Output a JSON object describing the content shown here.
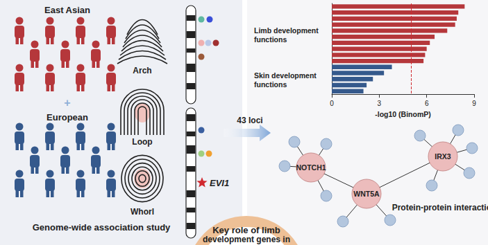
{
  "left_panel": {
    "groups": [
      "East Asian",
      "European"
    ],
    "plus": "+",
    "fingerprints": [
      "Arch",
      "Loop",
      "Whorl"
    ],
    "gene": "EVI1",
    "caption": "Genome-wide association study"
  },
  "arrow_label": "43 loci",
  "chart_data": {
    "type": "bar",
    "orientation": "horizontal",
    "categories": [
      null,
      null,
      null,
      null,
      null,
      null,
      null,
      null,
      null,
      null,
      null,
      null,
      null,
      null,
      null
    ],
    "values": [
      8.4,
      8.0,
      7.9,
      7.8,
      7.3,
      6.5,
      6.2,
      6.0,
      5.9,
      5.8,
      3.8,
      3.3,
      2.6,
      2.2,
      2.0
    ],
    "colors": [
      "#b5373b",
      "#b5373b",
      "#b5373b",
      "#b5373b",
      "#b5373b",
      "#b5373b",
      "#b5373b",
      "#b5373b",
      "#b5373b",
      "#b5373b",
      "#35598c",
      "#35598c",
      "#35598c",
      "#35598c",
      "#35598c"
    ],
    "annotations": [
      "Limb development functions",
      "Skin development functions"
    ],
    "threshold": 5,
    "xlabel": "-log10 (BinomP)",
    "xlim": [
      0,
      9
    ],
    "xticks": [
      0,
      3,
      6,
      9
    ],
    "grid": false,
    "tick_labels": "x"
  },
  "network": {
    "nodes": [
      "NOTCH1",
      "WNT5A",
      "IRX3"
    ],
    "caption": "Protein-protein interaction"
  },
  "footer": [
    "Key role of limb",
    "development genes in"
  ]
}
